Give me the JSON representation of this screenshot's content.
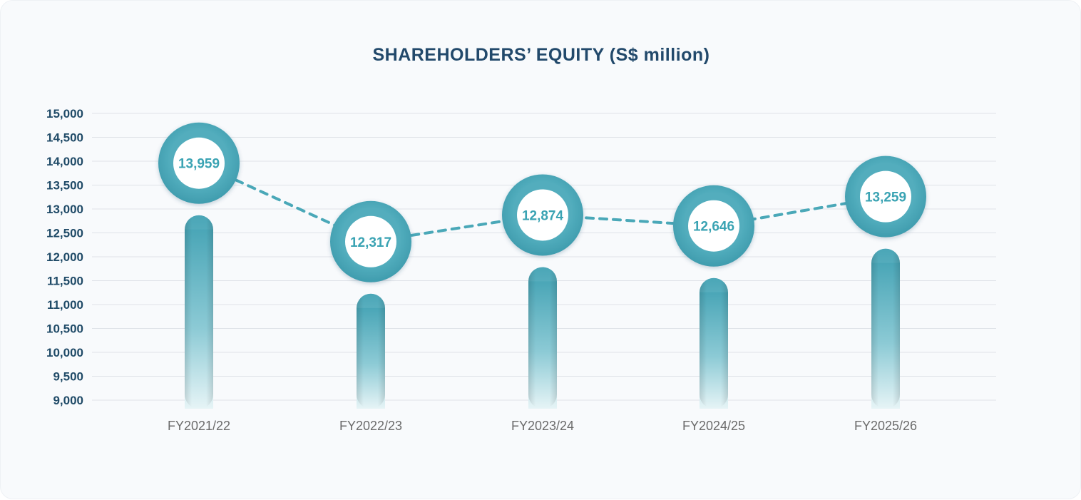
{
  "chart_data": {
    "type": "line",
    "title": "SHAREHOLDERS’ EQUITY (S$ million)",
    "xlabel": "",
    "ylabel": "",
    "categories": [
      "FY2021/22",
      "FY2022/23",
      "FY2023/24",
      "FY2024/25",
      "FY2025/26"
    ],
    "values": [
      13959,
      12317,
      12874,
      12646,
      13259
    ],
    "value_labels": [
      "13,959",
      "12,317",
      "12,874",
      "12,646",
      "13,259"
    ],
    "yticks": [
      "9,000",
      "9,500",
      "10,000",
      "10,500",
      "11,000",
      "11,500",
      "12,000",
      "12,500",
      "13,000",
      "13,500",
      "14,000",
      "14,500",
      "15,000"
    ],
    "ylim": [
      9000,
      15000
    ],
    "grid": true,
    "colors": {
      "accent": "#4aa8b8",
      "dashed_line": "#4aa8b8",
      "title": "#22496b",
      "ytick": "#1f4a67",
      "xtick": "#6b6b6b",
      "grid": "#dfe3e8"
    }
  }
}
